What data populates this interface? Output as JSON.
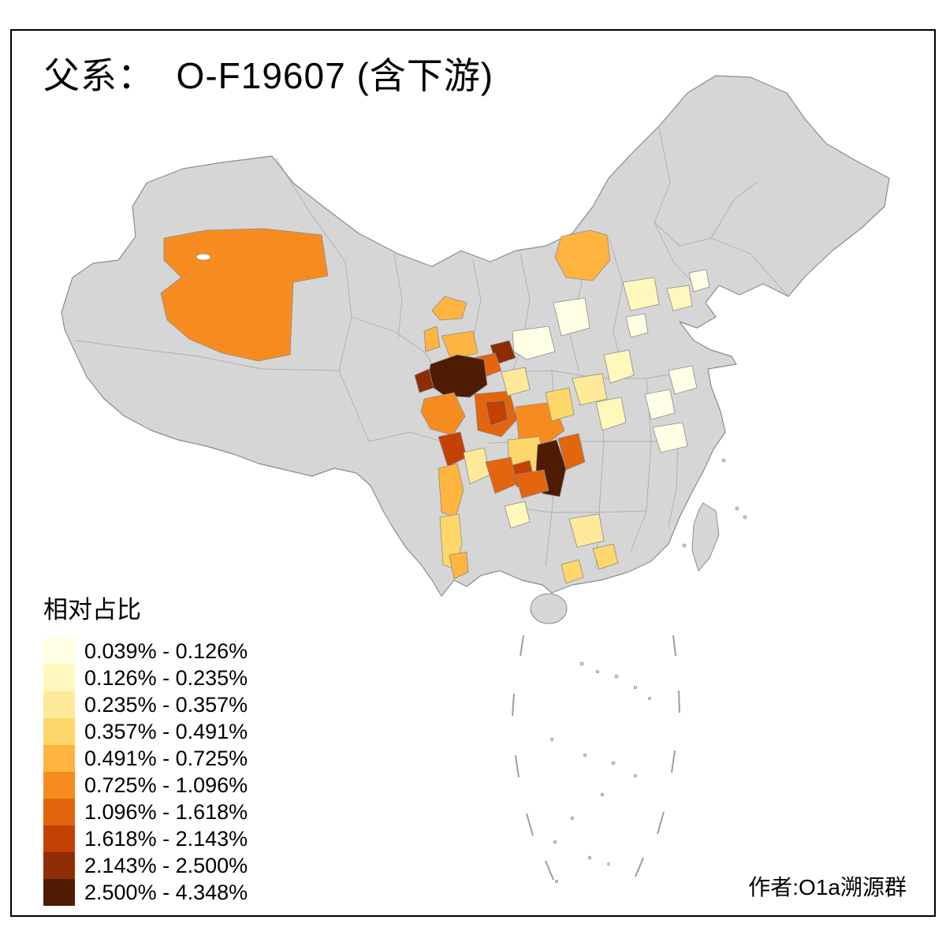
{
  "title": "父系：  O-F19607 (含下游)",
  "credit": "作者:O1a溯源群",
  "legend": {
    "title": "相对占比",
    "items": [
      {
        "label": "0.039% - 0.126%",
        "color": "#FFFFE5"
      },
      {
        "label": "0.126% - 0.235%",
        "color": "#FFF7BC"
      },
      {
        "label": "0.235% - 0.357%",
        "color": "#FEE999"
      },
      {
        "label": "0.357% - 0.491%",
        "color": "#FED76A"
      },
      {
        "label": "0.491% - 0.725%",
        "color": "#FEB43F"
      },
      {
        "label": "0.725% - 1.096%",
        "color": "#F68C20"
      },
      {
        "label": "1.096% - 1.618%",
        "color": "#E3650D"
      },
      {
        "label": "1.618% - 2.143%",
        "color": "#C44103"
      },
      {
        "label": "2.143% - 2.500%",
        "color": "#8E2D04"
      },
      {
        "label": "2.500% - 4.348%",
        "color": "#4F1B03"
      }
    ]
  },
  "map": {
    "land_color": "#D6D6D6",
    "border_color": "#8C8C8C",
    "background": "#FFFFFF"
  }
}
